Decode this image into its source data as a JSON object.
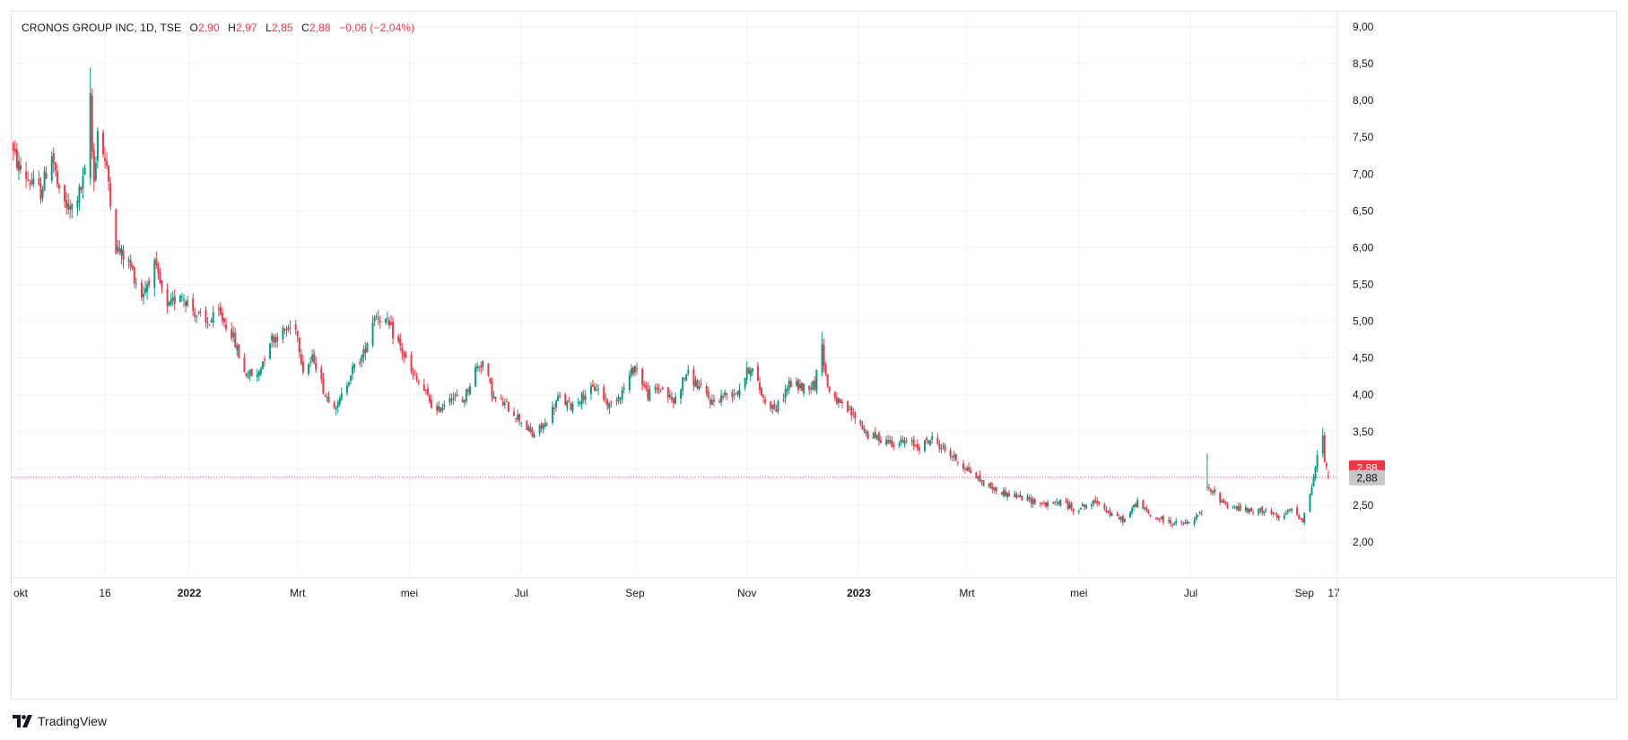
{
  "legend": {
    "symbol": "CRONOS GROUP INC, 1D, TSE",
    "open_label": "O",
    "open": "2,90",
    "high_label": "H",
    "high": "2,97",
    "low_label": "L",
    "low": "2,85",
    "close_label": "C",
    "close": "2,88",
    "change": "−0,06 (−2,04%)"
  },
  "brand": {
    "name": "TradingView",
    "icon": "tradingview-logo-icon"
  },
  "colors": {
    "up": "#089981",
    "down": "#f23645",
    "grid": "#f0f3fa",
    "text": "#131722",
    "price_line": "#f23645",
    "secondary_label": "#c7c7c7"
  },
  "chart_data": {
    "type": "candlestick",
    "symbol": "CRONOS GROUP INC",
    "interval": "1D",
    "exchange": "TSE",
    "date_range": [
      "2021-09-24",
      "2023-09-14"
    ],
    "ylim": [
      1.5,
      9.2
    ],
    "y_ticks": [
      "2,00",
      "2,50",
      "3,00",
      "3,50",
      "4,00",
      "4,50",
      "5,00",
      "5,50",
      "6,00",
      "6,50",
      "7,00",
      "7,50",
      "8,00",
      "8,50",
      "9,00"
    ],
    "x_ticks": [
      {
        "label": "okt",
        "date": "2021-10-01",
        "bold": false
      },
      {
        "label": "16",
        "date": "2021-11-16",
        "bold": false
      },
      {
        "label": "2022",
        "date": "2022-01-01",
        "bold": true
      },
      {
        "label": "Mrt",
        "date": "2022-03-01",
        "bold": false
      },
      {
        "label": "mei",
        "date": "2022-05-01",
        "bold": false
      },
      {
        "label": "Jul",
        "date": "2022-07-01",
        "bold": false
      },
      {
        "label": "Sep",
        "date": "2022-09-01",
        "bold": false
      },
      {
        "label": "Nov",
        "date": "2022-11-01",
        "bold": false
      },
      {
        "label": "2023",
        "date": "2023-01-01",
        "bold": true
      },
      {
        "label": "Mrt",
        "date": "2023-03-01",
        "bold": false
      },
      {
        "label": "mei",
        "date": "2023-05-01",
        "bold": false
      },
      {
        "label": "Jul",
        "date": "2023-07-01",
        "bold": false
      },
      {
        "label": "Sep",
        "date": "2023-09-01",
        "bold": false
      },
      {
        "label": "17",
        "date": "2023-09-17",
        "bold": false
      }
    ],
    "price_labels": [
      {
        "value": 2.88,
        "text": "2,88",
        "style": "last"
      },
      {
        "value": 2.88,
        "text": "2,88",
        "style": "secondary"
      }
    ],
    "close_path": [
      [
        "2021-09-24",
        7.45
      ],
      [
        "2021-09-30",
        7.1
      ],
      [
        "2021-10-06",
        6.9
      ],
      [
        "2021-10-12",
        6.75
      ],
      [
        "2021-10-18",
        7.3
      ],
      [
        "2021-10-22",
        6.7
      ],
      [
        "2021-10-28",
        6.5
      ],
      [
        "2021-11-03",
        6.8
      ],
      [
        "2021-11-05",
        7.0
      ],
      [
        "2021-11-08",
        7.7
      ],
      [
        "2021-11-10",
        6.9
      ],
      [
        "2021-11-12",
        7.6
      ],
      [
        "2021-11-15",
        7.3
      ],
      [
        "2021-11-18",
        6.9
      ],
      [
        "2021-11-22",
        6.0
      ],
      [
        "2021-11-29",
        5.8
      ],
      [
        "2021-12-06",
        5.35
      ],
      [
        "2021-12-13",
        5.75
      ],
      [
        "2021-12-20",
        5.15
      ],
      [
        "2021-12-27",
        5.4
      ],
      [
        "2022-01-03",
        5.15
      ],
      [
        "2022-01-10",
        4.95
      ],
      [
        "2022-01-17",
        5.1
      ],
      [
        "2022-01-24",
        4.85
      ],
      [
        "2022-01-31",
        4.3
      ],
      [
        "2022-02-07",
        4.25
      ],
      [
        "2022-02-14",
        4.75
      ],
      [
        "2022-02-21",
        4.85
      ],
      [
        "2022-02-28",
        4.95
      ],
      [
        "2022-03-04",
        4.35
      ],
      [
        "2022-03-10",
        4.5
      ],
      [
        "2022-03-16",
        4.0
      ],
      [
        "2022-03-23",
        3.85
      ],
      [
        "2022-03-30",
        4.3
      ],
      [
        "2022-04-06",
        4.55
      ],
      [
        "2022-04-12",
        5.1
      ],
      [
        "2022-04-18",
        5.0
      ],
      [
        "2022-04-25",
        4.7
      ],
      [
        "2022-05-02",
        4.3
      ],
      [
        "2022-05-09",
        4.05
      ],
      [
        "2022-05-16",
        3.75
      ],
      [
        "2022-05-23",
        4.0
      ],
      [
        "2022-05-30",
        3.9
      ],
      [
        "2022-06-06",
        4.35
      ],
      [
        "2022-06-10",
        4.45
      ],
      [
        "2022-06-16",
        3.95
      ],
      [
        "2022-06-23",
        3.85
      ],
      [
        "2022-07-01",
        3.65
      ],
      [
        "2022-07-07",
        3.45
      ],
      [
        "2022-07-14",
        3.6
      ],
      [
        "2022-07-21",
        3.95
      ],
      [
        "2022-07-28",
        3.85
      ],
      [
        "2022-08-04",
        4.0
      ],
      [
        "2022-08-11",
        4.1
      ],
      [
        "2022-08-18",
        3.85
      ],
      [
        "2022-08-25",
        4.05
      ],
      [
        "2022-09-01",
        4.4
      ],
      [
        "2022-09-08",
        4.0
      ],
      [
        "2022-09-15",
        4.1
      ],
      [
        "2022-09-22",
        3.9
      ],
      [
        "2022-09-29",
        4.3
      ],
      [
        "2022-10-06",
        4.1
      ],
      [
        "2022-10-13",
        3.9
      ],
      [
        "2022-10-20",
        4.0
      ],
      [
        "2022-10-27",
        4.05
      ],
      [
        "2022-11-03",
        4.4
      ],
      [
        "2022-11-10",
        3.95
      ],
      [
        "2022-11-17",
        3.8
      ],
      [
        "2022-11-24",
        4.15
      ],
      [
        "2022-12-01",
        4.1
      ],
      [
        "2022-12-08",
        4.15
      ],
      [
        "2022-12-12",
        4.65
      ],
      [
        "2022-12-15",
        4.1
      ],
      [
        "2022-12-22",
        3.85
      ],
      [
        "2022-12-30",
        3.7
      ],
      [
        "2023-01-06",
        3.45
      ],
      [
        "2023-01-13",
        3.4
      ],
      [
        "2023-01-20",
        3.35
      ],
      [
        "2023-01-27",
        3.35
      ],
      [
        "2023-02-03",
        3.3
      ],
      [
        "2023-02-10",
        3.4
      ],
      [
        "2023-02-17",
        3.25
      ],
      [
        "2023-02-24",
        3.1
      ],
      [
        "2023-03-03",
        2.95
      ],
      [
        "2023-03-10",
        2.8
      ],
      [
        "2023-03-17",
        2.7
      ],
      [
        "2023-03-24",
        2.65
      ],
      [
        "2023-03-31",
        2.6
      ],
      [
        "2023-04-07",
        2.55
      ],
      [
        "2023-04-14",
        2.5
      ],
      [
        "2023-04-21",
        2.55
      ],
      [
        "2023-04-28",
        2.45
      ],
      [
        "2023-05-05",
        2.5
      ],
      [
        "2023-05-12",
        2.55
      ],
      [
        "2023-05-19",
        2.35
      ],
      [
        "2023-05-26",
        2.3
      ],
      [
        "2023-06-02",
        2.55
      ],
      [
        "2023-06-09",
        2.35
      ],
      [
        "2023-06-16",
        2.3
      ],
      [
        "2023-06-23",
        2.25
      ],
      [
        "2023-06-30",
        2.25
      ],
      [
        "2023-07-07",
        2.4
      ],
      [
        "2023-07-11",
        2.7
      ],
      [
        "2023-07-14",
        2.65
      ],
      [
        "2023-07-21",
        2.5
      ],
      [
        "2023-07-28",
        2.45
      ],
      [
        "2023-08-04",
        2.4
      ],
      [
        "2023-08-11",
        2.45
      ],
      [
        "2023-08-18",
        2.3
      ],
      [
        "2023-08-25",
        2.45
      ],
      [
        "2023-08-31",
        2.3
      ],
      [
        "2023-09-04",
        2.65
      ],
      [
        "2023-09-07",
        3.0
      ],
      [
        "2023-09-09",
        3.3
      ],
      [
        "2023-09-11",
        3.4
      ],
      [
        "2023-09-12",
        3.1
      ],
      [
        "2023-09-14",
        2.88
      ]
    ],
    "notable_candles": [
      {
        "date": "2021-11-08",
        "open": 6.95,
        "high": 8.45,
        "low": 6.85,
        "close": 8.1
      },
      {
        "date": "2022-12-12",
        "open": 4.3,
        "high": 4.85,
        "low": 4.25,
        "close": 4.7
      },
      {
        "date": "2023-07-10",
        "open": 2.75,
        "high": 3.2,
        "low": 2.7,
        "close": 2.75
      },
      {
        "date": "2023-09-11",
        "open": 3.2,
        "high": 3.55,
        "low": 3.15,
        "close": 3.45
      },
      {
        "date": "2023-09-14",
        "open": 2.9,
        "high": 2.97,
        "low": 2.85,
        "close": 2.88
      }
    ]
  }
}
